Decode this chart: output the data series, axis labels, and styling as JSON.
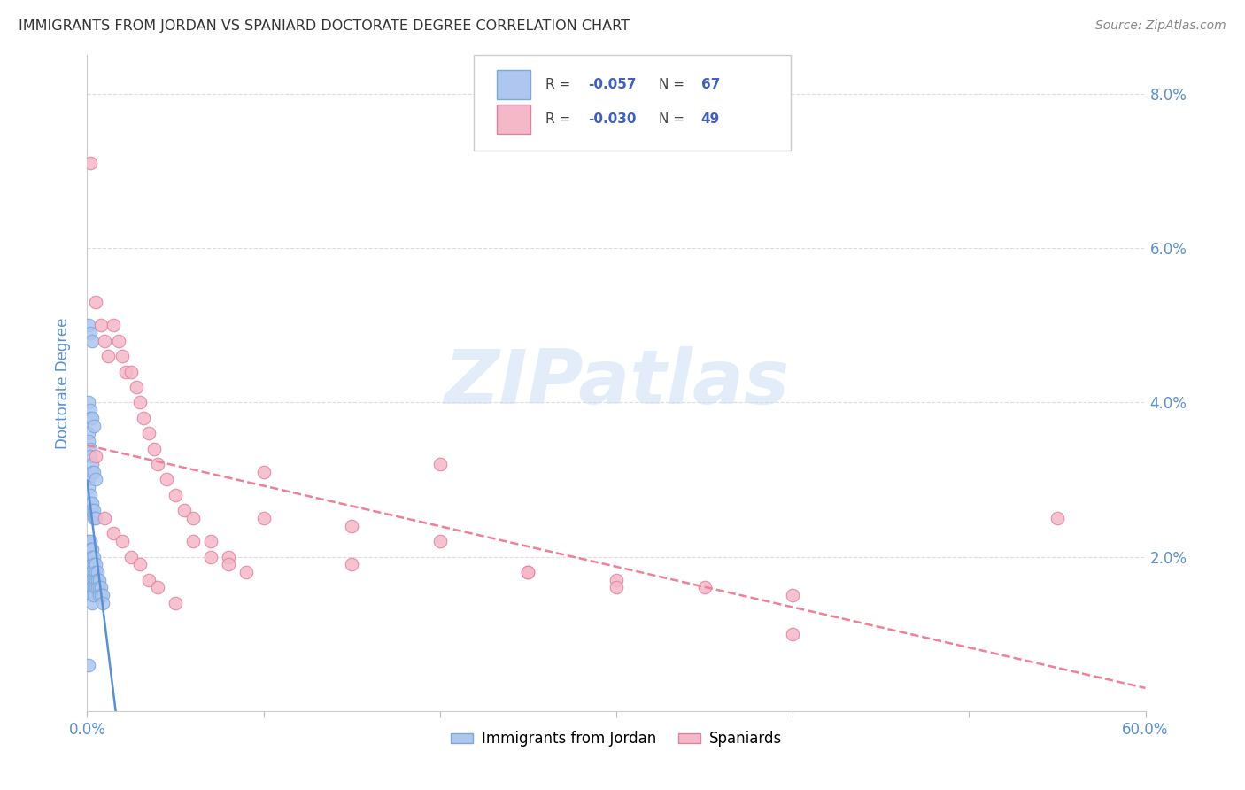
{
  "title": "IMMIGRANTS FROM JORDAN VS SPANIARD DOCTORATE DEGREE CORRELATION CHART",
  "source": "Source: ZipAtlas.com",
  "ylabel": "Doctorate Degree",
  "watermark": "ZIPatlas",
  "xlim": [
    0.0,
    0.6
  ],
  "ylim": [
    0.0,
    0.085
  ],
  "x_ticks": [
    0.0,
    0.1,
    0.2,
    0.3,
    0.4,
    0.5,
    0.6
  ],
  "x_tick_labels": [
    "0.0%",
    "",
    "",
    "",
    "",
    "",
    "60.0%"
  ],
  "y_ticks": [
    0.0,
    0.02,
    0.04,
    0.06,
    0.08
  ],
  "y_tick_labels": [
    "",
    "2.0%",
    "4.0%",
    "6.0%",
    "8.0%"
  ],
  "jordan_x": [
    0.001,
    0.001,
    0.001,
    0.001,
    0.001,
    0.002,
    0.002,
    0.002,
    0.002,
    0.002,
    0.002,
    0.002,
    0.003,
    0.003,
    0.003,
    0.003,
    0.003,
    0.003,
    0.003,
    0.003,
    0.004,
    0.004,
    0.004,
    0.004,
    0.004,
    0.004,
    0.005,
    0.005,
    0.005,
    0.005,
    0.006,
    0.006,
    0.006,
    0.007,
    0.007,
    0.007,
    0.008,
    0.008,
    0.009,
    0.009,
    0.001,
    0.001,
    0.002,
    0.002,
    0.002,
    0.003,
    0.003,
    0.004,
    0.004,
    0.005,
    0.001,
    0.001,
    0.002,
    0.002,
    0.003,
    0.003,
    0.004,
    0.005,
    0.001,
    0.002,
    0.002,
    0.003,
    0.004,
    0.001,
    0.002,
    0.003,
    0.001
  ],
  "jordan_y": [
    0.022,
    0.021,
    0.02,
    0.019,
    0.018,
    0.022,
    0.021,
    0.02,
    0.019,
    0.018,
    0.017,
    0.016,
    0.021,
    0.02,
    0.019,
    0.018,
    0.017,
    0.016,
    0.015,
    0.014,
    0.02,
    0.019,
    0.018,
    0.017,
    0.016,
    0.015,
    0.019,
    0.018,
    0.017,
    0.016,
    0.018,
    0.017,
    0.016,
    0.017,
    0.016,
    0.015,
    0.016,
    0.015,
    0.015,
    0.014,
    0.03,
    0.029,
    0.028,
    0.027,
    0.026,
    0.027,
    0.026,
    0.026,
    0.025,
    0.025,
    0.036,
    0.035,
    0.034,
    0.033,
    0.032,
    0.031,
    0.031,
    0.03,
    0.04,
    0.039,
    0.038,
    0.038,
    0.037,
    0.05,
    0.049,
    0.048,
    0.006
  ],
  "spaniard_x": [
    0.002,
    0.005,
    0.008,
    0.01,
    0.012,
    0.015,
    0.018,
    0.02,
    0.022,
    0.025,
    0.028,
    0.03,
    0.032,
    0.035,
    0.038,
    0.04,
    0.045,
    0.05,
    0.055,
    0.06,
    0.07,
    0.08,
    0.09,
    0.1,
    0.15,
    0.2,
    0.25,
    0.3,
    0.35,
    0.4,
    0.01,
    0.015,
    0.02,
    0.025,
    0.03,
    0.035,
    0.04,
    0.05,
    0.06,
    0.07,
    0.08,
    0.1,
    0.15,
    0.2,
    0.25,
    0.3,
    0.4,
    0.55,
    0.005
  ],
  "spaniard_y": [
    0.071,
    0.053,
    0.05,
    0.048,
    0.046,
    0.05,
    0.048,
    0.046,
    0.044,
    0.044,
    0.042,
    0.04,
    0.038,
    0.036,
    0.034,
    0.032,
    0.03,
    0.028,
    0.026,
    0.025,
    0.022,
    0.02,
    0.018,
    0.031,
    0.024,
    0.022,
    0.018,
    0.017,
    0.016,
    0.015,
    0.025,
    0.023,
    0.022,
    0.02,
    0.019,
    0.017,
    0.016,
    0.014,
    0.022,
    0.02,
    0.019,
    0.025,
    0.019,
    0.032,
    0.018,
    0.016,
    0.01,
    0.025,
    0.033
  ],
  "background_color": "#ffffff",
  "grid_color": "#dddddd",
  "jordan_scatter_color": "#aec6f0",
  "jordan_scatter_edge": "#7aa8d8",
  "spaniard_scatter_color": "#f5b8c8",
  "spaniard_scatter_edge": "#e080a0",
  "jordan_trend_color": "#5a8fd0",
  "spaniard_trend_color": "#f08098",
  "title_color": "#333333",
  "tick_label_color": "#5a8fd0",
  "source_color": "#888888",
  "r_color": "#4060c0",
  "legend_jordan_R": "-0.057",
  "legend_jordan_N": "67",
  "legend_spaniard_R": "-0.030",
  "legend_spaniard_N": "49",
  "legend_jordan_label": "Immigrants from Jordan",
  "legend_spaniard_label": "Spaniards"
}
